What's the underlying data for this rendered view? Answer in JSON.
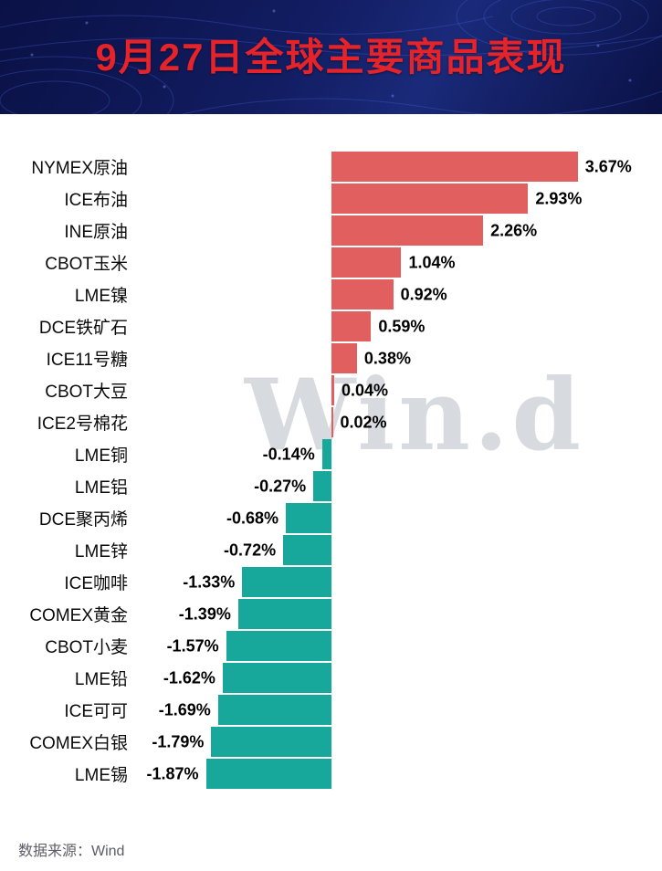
{
  "header": {
    "title": "9月27日全球主要商品表现"
  },
  "watermark": {
    "text": "Win.d"
  },
  "footer": {
    "source": "数据来源：Wind"
  },
  "chart_data": {
    "type": "bar",
    "orientation": "horizontal",
    "title": "9月27日全球主要商品表现",
    "xlabel": "",
    "ylabel": "",
    "xlim": [
      -2.9,
      4.93
    ],
    "grid": false,
    "legend": "none",
    "positive_color": "#e15f5f",
    "negative_color": "#17a89b",
    "categories": [
      "NYMEX原油",
      "ICE布油",
      "INE原油",
      "CBOT玉米",
      "LME镍",
      "DCE铁矿石",
      "ICE11号糖",
      "CBOT大豆",
      "ICE2号棉花",
      "LME铜",
      "LME铝",
      "DCE聚丙烯",
      "LME锌",
      "ICE咖啡",
      "COMEX黄金",
      "CBOT小麦",
      "LME铅",
      "ICE可可",
      "COMEX白银",
      "LME锡"
    ],
    "values": [
      3.67,
      2.93,
      2.26,
      1.04,
      0.92,
      0.59,
      0.38,
      0.04,
      0.02,
      -0.14,
      -0.27,
      -0.68,
      -0.72,
      -1.33,
      -1.39,
      -1.57,
      -1.62,
      -1.69,
      -1.79,
      -1.87
    ],
    "labels": [
      "3.67%",
      "2.93%",
      "2.26%",
      "1.04%",
      "0.92%",
      "0.59%",
      "0.38%",
      "0.04%",
      "0.02%",
      "-0.14%",
      "-0.27%",
      "-0.68%",
      "-0.72%",
      "-1.33%",
      "-1.39%",
      "-1.57%",
      "-1.62%",
      "-1.69%",
      "-1.79%",
      "-1.87%"
    ]
  }
}
